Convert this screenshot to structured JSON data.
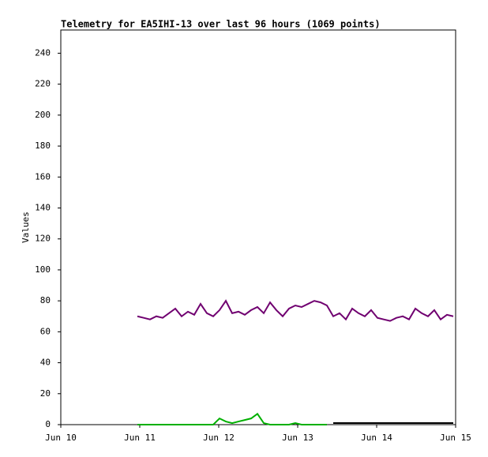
{
  "chart_data": {
    "type": "line",
    "title": "Telemetry for EA5IHI-13 over last 96 hours (1069 points)",
    "ylabel": "Values",
    "x": [
      10.97,
      11.05,
      11.13,
      11.21,
      11.29,
      11.37,
      11.45,
      11.53,
      11.61,
      11.69,
      11.77,
      11.85,
      11.93,
      12.01,
      12.09,
      12.17,
      12.25,
      12.33,
      12.41,
      12.49,
      12.57,
      12.65,
      12.73,
      12.81,
      12.89,
      12.97,
      13.05,
      13.13,
      13.21,
      13.29,
      13.37,
      13.45,
      13.53,
      13.61,
      13.69,
      13.77,
      13.85,
      13.93,
      14.01,
      14.09,
      14.17,
      14.25,
      14.33,
      14.41,
      14.49,
      14.57,
      14.65,
      14.73,
      14.81,
      14.89,
      14.97
    ],
    "series": [
      {
        "color": "#700070",
        "values": [
          70,
          69,
          68,
          70,
          69,
          72,
          75,
          70,
          73,
          71,
          78,
          72,
          70,
          74,
          80,
          72,
          73,
          71,
          74,
          76,
          72,
          79,
          74,
          70,
          75,
          77,
          76,
          78,
          80,
          79,
          77,
          70,
          72,
          68,
          75,
          72,
          70,
          74,
          69,
          68,
          67,
          69,
          70,
          68,
          75,
          72,
          70,
          74,
          68,
          71,
          70
        ]
      },
      {
        "color": "#00b000",
        "values": [
          0,
          0,
          0,
          0,
          0,
          0,
          0,
          0,
          0,
          0,
          0,
          0,
          0,
          4,
          2,
          1,
          2,
          3,
          4,
          7,
          1,
          0,
          0,
          0,
          0,
          1,
          0,
          0,
          0,
          0,
          0,
          null,
          null,
          null,
          null,
          null,
          null,
          null,
          null,
          null,
          null,
          null,
          null,
          null,
          null,
          null,
          null,
          null,
          null,
          null,
          null
        ]
      },
      {
        "color": "#000000",
        "values": [
          null,
          null,
          null,
          null,
          null,
          null,
          null,
          null,
          null,
          null,
          null,
          null,
          null,
          null,
          null,
          null,
          null,
          null,
          null,
          null,
          null,
          null,
          null,
          null,
          null,
          null,
          null,
          null,
          null,
          null,
          null,
          1,
          1,
          1,
          1,
          1,
          1,
          1,
          1,
          1,
          1,
          1,
          1,
          1,
          1,
          1,
          1,
          1,
          1,
          1,
          1
        ]
      }
    ],
    "xlim": [
      10,
      15
    ],
    "xticks": [
      {
        "value": 10,
        "label": "Jun 10"
      },
      {
        "value": 11,
        "label": "Jun 11"
      },
      {
        "value": 12,
        "label": "Jun 12"
      },
      {
        "value": 13,
        "label": "Jun 13"
      },
      {
        "value": 14,
        "label": "Jun 14"
      },
      {
        "value": 15,
        "label": "Jun 15"
      }
    ],
    "ylim": [
      0,
      255
    ],
    "yticks": [
      0,
      20,
      40,
      60,
      80,
      100,
      120,
      140,
      160,
      180,
      200,
      220,
      240
    ],
    "grid": false
  }
}
